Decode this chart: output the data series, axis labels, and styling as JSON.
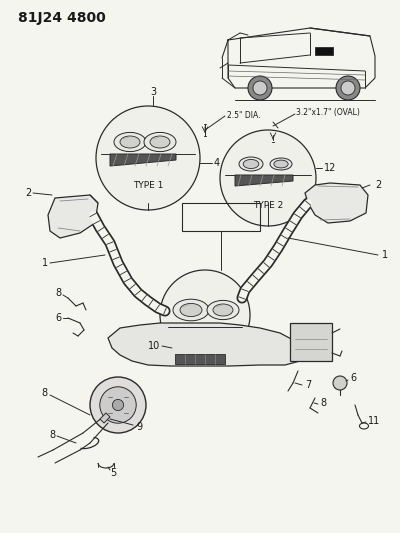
{
  "title_text": "81J24 4800",
  "bg_color": "#f5f5f0",
  "line_color": "#2a2a2a",
  "text_color": "#1a1a1a",
  "label_fontsize": 7,
  "dim_text_1": "2.5\" DIA.",
  "dim_text_2": "3.2\"x1.7\" (OVAL)",
  "type1_text": "TYPE 1",
  "type2_text": "TYPE 2",
  "title_fontsize": 10
}
